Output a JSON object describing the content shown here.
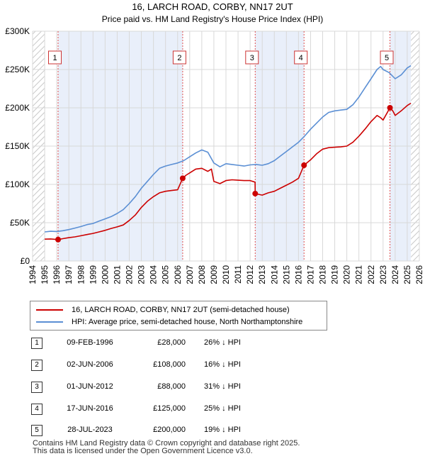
{
  "chart_data": {
    "type": "line",
    "title": "16, LARCH ROAD, CORBY, NN17 2UT",
    "subtitle": "Price paid vs. HM Land Registry's House Price Index (HPI)",
    "xlim": [
      1994,
      2026
    ],
    "ylim": [
      0,
      300000
    ],
    "x_ticks": [
      "1994",
      "1995",
      "1996",
      "1997",
      "1998",
      "1999",
      "2000",
      "2001",
      "2002",
      "2003",
      "2004",
      "2005",
      "2006",
      "2007",
      "2008",
      "2009",
      "2010",
      "2011",
      "2012",
      "2013",
      "2014",
      "2015",
      "2016",
      "2017",
      "2018",
      "2019",
      "2020",
      "2021",
      "2022",
      "2023",
      "2024",
      "2025",
      "2026"
    ],
    "y_ticks": [
      {
        "value": 0,
        "label": "£0"
      },
      {
        "value": 50000,
        "label": "£50K"
      },
      {
        "value": 100000,
        "label": "£100K"
      },
      {
        "value": 150000,
        "label": "£150K"
      },
      {
        "value": 200000,
        "label": "£200K"
      },
      {
        "value": 250000,
        "label": "£250K"
      },
      {
        "value": 300000,
        "label": "£300K"
      }
    ],
    "grid": true,
    "data_start": 1995.0,
    "data_end": 2025.3,
    "series": [
      {
        "name": "16, LARCH ROAD, CORBY, NN17 2UT (semi-detached house)",
        "color": "#cc0000",
        "points": [
          [
            1995.0,
            28500
          ],
          [
            1995.5,
            28800
          ],
          [
            1996.11,
            28000
          ],
          [
            1996.5,
            29200
          ],
          [
            1997.0,
            30500
          ],
          [
            1997.5,
            31500
          ],
          [
            1998.0,
            33000
          ],
          [
            1998.5,
            34500
          ],
          [
            1999.0,
            36000
          ],
          [
            1999.5,
            38000
          ],
          [
            2000.0,
            40000
          ],
          [
            2000.5,
            42500
          ],
          [
            2001.0,
            44500
          ],
          [
            2001.5,
            47000
          ],
          [
            2002.0,
            53000
          ],
          [
            2002.5,
            60000
          ],
          [
            2003.0,
            70000
          ],
          [
            2003.5,
            78000
          ],
          [
            2004.0,
            84000
          ],
          [
            2004.5,
            89000
          ],
          [
            2005.0,
            91000
          ],
          [
            2005.5,
            92000
          ],
          [
            2006.0,
            93000
          ],
          [
            2006.42,
            108000
          ],
          [
            2006.7,
            112000
          ],
          [
            2007.0,
            115000
          ],
          [
            2007.5,
            120000
          ],
          [
            2008.0,
            121000
          ],
          [
            2008.5,
            117000
          ],
          [
            2008.8,
            120000
          ],
          [
            2009.0,
            104000
          ],
          [
            2009.5,
            101000
          ],
          [
            2010.0,
            105000
          ],
          [
            2010.5,
            106000
          ],
          [
            2011.0,
            105500
          ],
          [
            2011.5,
            105000
          ],
          [
            2012.0,
            105000
          ],
          [
            2012.41,
            103000
          ],
          [
            2012.42,
            88000
          ],
          [
            2013.0,
            86000
          ],
          [
            2013.5,
            89000
          ],
          [
            2014.0,
            91000
          ],
          [
            2014.5,
            95000
          ],
          [
            2015.0,
            99000
          ],
          [
            2015.5,
            103000
          ],
          [
            2016.0,
            108000
          ],
          [
            2016.46,
            125000
          ],
          [
            2017.0,
            132000
          ],
          [
            2017.5,
            140000
          ],
          [
            2018.0,
            146000
          ],
          [
            2018.5,
            148000
          ],
          [
            2019.0,
            148500
          ],
          [
            2019.5,
            149000
          ],
          [
            2020.0,
            150000
          ],
          [
            2020.5,
            155000
          ],
          [
            2021.0,
            163000
          ],
          [
            2021.5,
            172000
          ],
          [
            2022.0,
            182000
          ],
          [
            2022.5,
            190000
          ],
          [
            2022.8,
            187000
          ],
          [
            2023.0,
            184000
          ],
          [
            2023.57,
            200000
          ],
          [
            2023.8,
            196000
          ],
          [
            2024.0,
            190000
          ],
          [
            2024.5,
            196000
          ],
          [
            2025.0,
            203000
          ],
          [
            2025.3,
            206000
          ]
        ]
      },
      {
        "name": "HPI: Average price, semi-detached house, North Northamptonshire",
        "color": "#5b8fd4",
        "points": [
          [
            1995.0,
            38000
          ],
          [
            1995.5,
            38800
          ],
          [
            1996.0,
            38500
          ],
          [
            1996.5,
            39500
          ],
          [
            1997.0,
            41000
          ],
          [
            1997.5,
            43000
          ],
          [
            1998.0,
            45000
          ],
          [
            1998.5,
            47500
          ],
          [
            1999.0,
            49000
          ],
          [
            1999.5,
            52000
          ],
          [
            2000.0,
            55000
          ],
          [
            2000.5,
            58000
          ],
          [
            2001.0,
            62000
          ],
          [
            2001.5,
            67000
          ],
          [
            2002.0,
            75000
          ],
          [
            2002.5,
            84000
          ],
          [
            2003.0,
            95000
          ],
          [
            2003.5,
            104000
          ],
          [
            2004.0,
            113000
          ],
          [
            2004.5,
            121000
          ],
          [
            2005.0,
            124000
          ],
          [
            2005.5,
            126000
          ],
          [
            2006.0,
            128000
          ],
          [
            2006.5,
            131000
          ],
          [
            2007.0,
            136000
          ],
          [
            2007.5,
            141000
          ],
          [
            2008.0,
            145000
          ],
          [
            2008.5,
            142000
          ],
          [
            2009.0,
            128000
          ],
          [
            2009.5,
            123000
          ],
          [
            2010.0,
            127000
          ],
          [
            2010.5,
            126000
          ],
          [
            2011.0,
            125000
          ],
          [
            2011.5,
            124000
          ],
          [
            2012.0,
            125500
          ],
          [
            2012.5,
            126000
          ],
          [
            2013.0,
            125000
          ],
          [
            2013.5,
            127000
          ],
          [
            2014.0,
            131000
          ],
          [
            2014.5,
            137000
          ],
          [
            2015.0,
            143000
          ],
          [
            2015.5,
            149000
          ],
          [
            2016.0,
            155000
          ],
          [
            2016.5,
            163000
          ],
          [
            2017.0,
            172000
          ],
          [
            2017.5,
            180000
          ],
          [
            2018.0,
            188000
          ],
          [
            2018.5,
            194000
          ],
          [
            2019.0,
            196000
          ],
          [
            2019.5,
            197000
          ],
          [
            2020.0,
            198000
          ],
          [
            2020.5,
            204000
          ],
          [
            2021.0,
            214000
          ],
          [
            2021.5,
            226000
          ],
          [
            2022.0,
            238000
          ],
          [
            2022.5,
            250000
          ],
          [
            2022.8,
            254000
          ],
          [
            2023.0,
            250000
          ],
          [
            2023.5,
            246000
          ],
          [
            2024.0,
            238000
          ],
          [
            2024.5,
            243000
          ],
          [
            2025.0,
            252000
          ],
          [
            2025.3,
            255000
          ]
        ]
      }
    ],
    "markers": [
      {
        "label": "1",
        "x": 1996.11,
        "y": 28000
      },
      {
        "label": "2",
        "x": 2006.42,
        "y": 108000
      },
      {
        "label": "3",
        "x": 2012.42,
        "y": 88000
      },
      {
        "label": "4",
        "x": 2016.46,
        "y": 125000
      },
      {
        "label": "5",
        "x": 2023.57,
        "y": 200000
      }
    ],
    "colors": {
      "hatch": "#cccccc",
      "band": "#e9effa",
      "grid": "#d8d8d8",
      "marker_line": "#e05050",
      "marker_dot": "#cc0000"
    }
  },
  "legend": {
    "property_label": "16, LARCH ROAD, CORBY, NN17 2UT (semi-detached house)",
    "hpi_label": "HPI: Average price, semi-detached house, North Northamptonshire"
  },
  "sales": [
    {
      "num": "1",
      "date": "09-FEB-1996",
      "price": "£28,000",
      "hpi": "26% ↓ HPI"
    },
    {
      "num": "2",
      "date": "02-JUN-2006",
      "price": "£108,000",
      "hpi": "16% ↓ HPI"
    },
    {
      "num": "3",
      "date": "01-JUN-2012",
      "price": "£88,000",
      "hpi": "31% ↓ HPI"
    },
    {
      "num": "4",
      "date": "17-JUN-2016",
      "price": "£125,000",
      "hpi": "25% ↓ HPI"
    },
    {
      "num": "5",
      "date": "28-JUL-2023",
      "price": "£200,000",
      "hpi": "19% ↓ HPI"
    }
  ],
  "footer": {
    "line1": "Contains HM Land Registry data © Crown copyright and database right 2025.",
    "line2": "This data is licensed under the Open Government Licence v3.0."
  }
}
